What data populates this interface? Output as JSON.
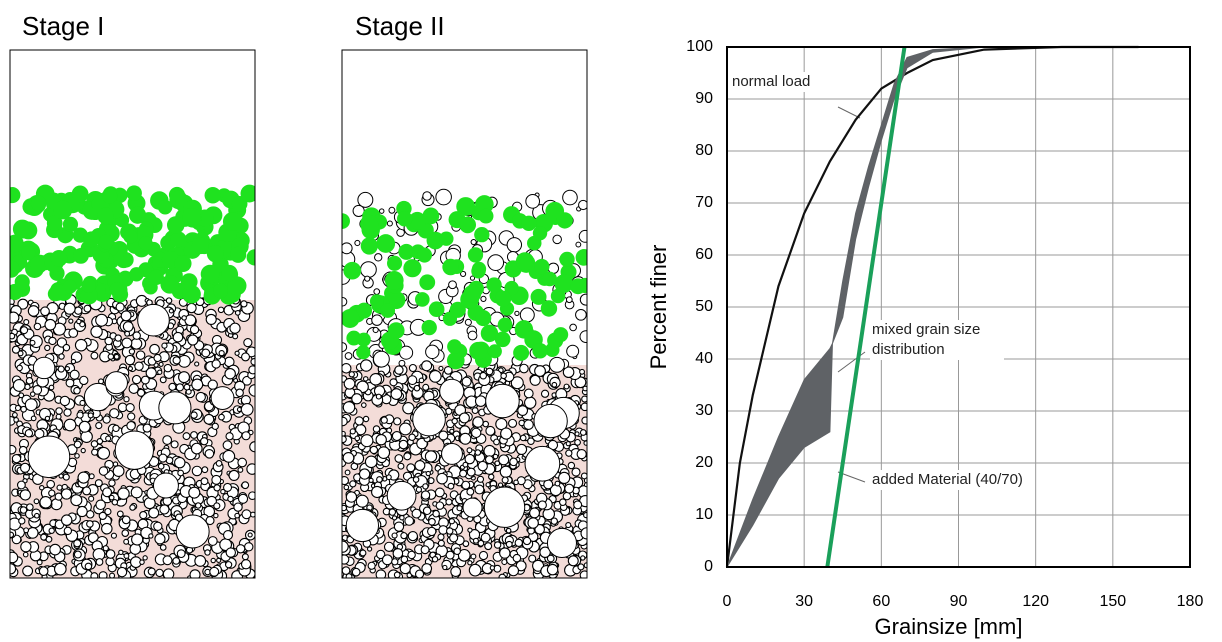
{
  "panels": [
    {
      "label": "Stage I"
    },
    {
      "label": "Stage II"
    }
  ],
  "chart_data": {
    "type": "line",
    "xlabel": "Grainsize [mm]",
    "ylabel": "Percent finer",
    "xlim": [
      0,
      180
    ],
    "xticks": [
      0,
      30,
      60,
      90,
      120,
      150,
      180
    ],
    "ylim": [
      0,
      100
    ],
    "yticks": [
      0,
      10,
      20,
      30,
      40,
      50,
      60,
      70,
      80,
      90,
      100
    ],
    "grid": true,
    "series": [
      {
        "color": "#111111",
        "x": [
          0,
          5,
          10,
          20,
          30,
          40,
          50,
          60,
          70,
          80,
          100,
          130,
          160
        ],
        "values": [
          0,
          20,
          33,
          54,
          68,
          78,
          86,
          92,
          95,
          97.5,
          99.5,
          100,
          100
        ]
      },
      {
        "color": "#5f6266",
        "x": [
          0,
          10,
          20,
          30,
          40,
          41,
          45,
          50,
          55,
          60,
          65,
          70,
          80,
          100
        ],
        "values": [
          0,
          13,
          25,
          36,
          42,
          43,
          55,
          68,
          77,
          85,
          93,
          98,
          99.5,
          100
        ],
        "lower": [
          0,
          8,
          17,
          23,
          26,
          43,
          48,
          63,
          73,
          82,
          90,
          96,
          99,
          100
        ]
      },
      {
        "color": "#1aa05a",
        "x": [
          39,
          69
        ],
        "values": [
          0,
          100
        ]
      }
    ],
    "annotations": [
      "normal load",
      "mixed grain size distribution",
      "added Material (40/70)"
    ]
  }
}
